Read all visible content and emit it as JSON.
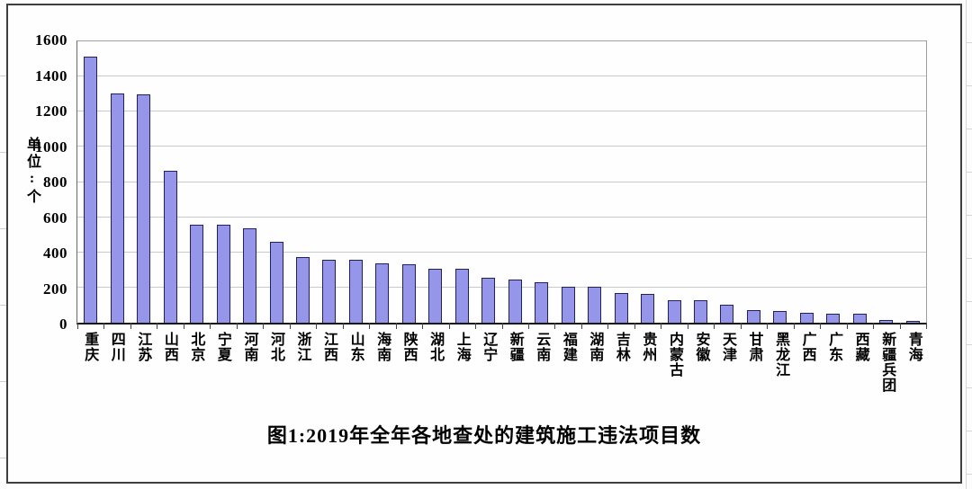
{
  "chart_data": {
    "type": "bar",
    "title": "图1:2019年全年各地查处的建筑施工违法项目数",
    "ylabel": "单位:个",
    "xlabel": "",
    "categories": [
      "重庆",
      "四川",
      "江苏",
      "山西",
      "北京",
      "宁夏",
      "河南",
      "河北",
      "浙江",
      "江西",
      "山东",
      "海南",
      "陕西",
      "湖北",
      "上海",
      "辽宁",
      "新疆",
      "云南",
      "福建",
      "湖南",
      "吉林",
      "贵州",
      "内蒙古",
      "安徽",
      "天津",
      "甘肃",
      "黑龙江",
      "广西",
      "广东",
      "西藏",
      "新疆兵团",
      "青海"
    ],
    "values": [
      1500,
      1290,
      1285,
      855,
      550,
      550,
      530,
      455,
      370,
      355,
      355,
      335,
      330,
      305,
      305,
      255,
      245,
      230,
      205,
      200,
      165,
      160,
      125,
      125,
      100,
      70,
      65,
      55,
      50,
      50,
      15,
      10
    ],
    "ylim": [
      0,
      1600
    ],
    "y_ticks": [
      0,
      200,
      400,
      600,
      800,
      1000,
      1200,
      1400,
      1600
    ],
    "grid": "horizontal",
    "legend": "none",
    "colors": {
      "bar_fill": "#9595EA",
      "bar_border": "#20205C",
      "gridline": "#C9C9C9",
      "axis": "#161616"
    }
  }
}
